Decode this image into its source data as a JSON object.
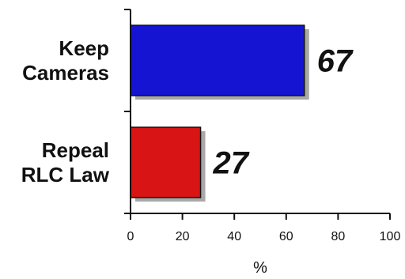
{
  "chart_data": {
    "type": "bar",
    "orientation": "horizontal",
    "categories": [
      [
        "Keep",
        "Cameras"
      ],
      [
        "Repeal",
        "RLC Law"
      ]
    ],
    "values": [
      67,
      27
    ],
    "value_labels": [
      "67",
      "27"
    ],
    "colors": [
      "#1414d2",
      "#d81414"
    ],
    "xlabel": "%",
    "xlim": [
      0,
      100
    ],
    "xticks": [
      "0",
      "20",
      "40",
      "60",
      "80",
      "100"
    ],
    "grid": false,
    "bar_shadow": true
  }
}
